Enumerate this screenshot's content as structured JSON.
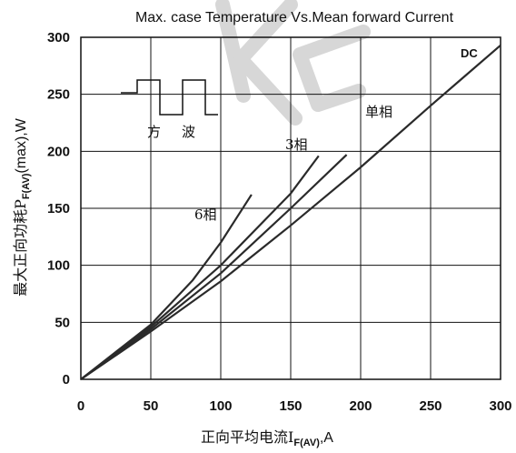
{
  "chart_data": {
    "type": "line",
    "title": "Max. case Temperature Vs.Mean forward Current",
    "xlabel": "正向平均电流I_F(AV),A",
    "xlabel_main": "正向平均电流I",
    "xlabel_sub": "F(AV)",
    "xlabel_tail": ",A",
    "ylabel": "最大正向功耗P_F(AV)(max),W",
    "ylabel_main": "最大正向功耗P",
    "ylabel_sub": "F(AV)",
    "ylabel_tail": "(max),W",
    "xlim": [
      0,
      300
    ],
    "ylim": [
      0,
      300
    ],
    "xticks": [
      0,
      50,
      100,
      150,
      200,
      250,
      300
    ],
    "yticks": [
      0,
      50,
      100,
      150,
      200,
      250,
      300
    ],
    "grid": true,
    "series": [
      {
        "name": "DC",
        "x": [
          0,
          50,
          100,
          150,
          200,
          250,
          300
        ],
        "y": [
          0,
          42,
          86,
          135,
          186,
          240,
          293
        ]
      },
      {
        "name": "单相",
        "x": [
          0,
          50,
          100,
          150,
          190
        ],
        "y": [
          0,
          44,
          93,
          150,
          197
        ]
      },
      {
        "name": "3相",
        "x": [
          0,
          50,
          100,
          150,
          170
        ],
        "y": [
          0,
          46,
          100,
          163,
          196
        ]
      },
      {
        "name": "6相",
        "x": [
          0,
          50,
          80,
          100,
          122
        ],
        "y": [
          0,
          48,
          87,
          120,
          162
        ]
      }
    ],
    "inset": {
      "label_left": "方",
      "label_right": "波"
    }
  }
}
